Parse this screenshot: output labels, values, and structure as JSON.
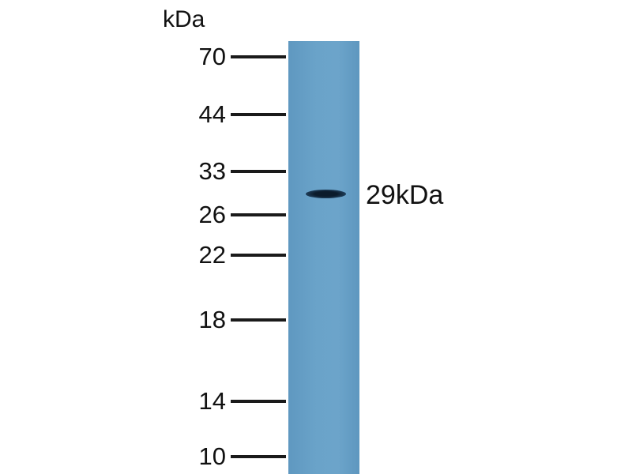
{
  "unit_label": "kDa",
  "markers": [
    "70",
    "44",
    "33",
    "26",
    "22",
    "18",
    "14",
    "10"
  ],
  "band_label": "29kDa",
  "colors": {
    "lane": "#6aa3c9",
    "band": "#0b1c2c",
    "ticks": "#1a1a1a"
  }
}
